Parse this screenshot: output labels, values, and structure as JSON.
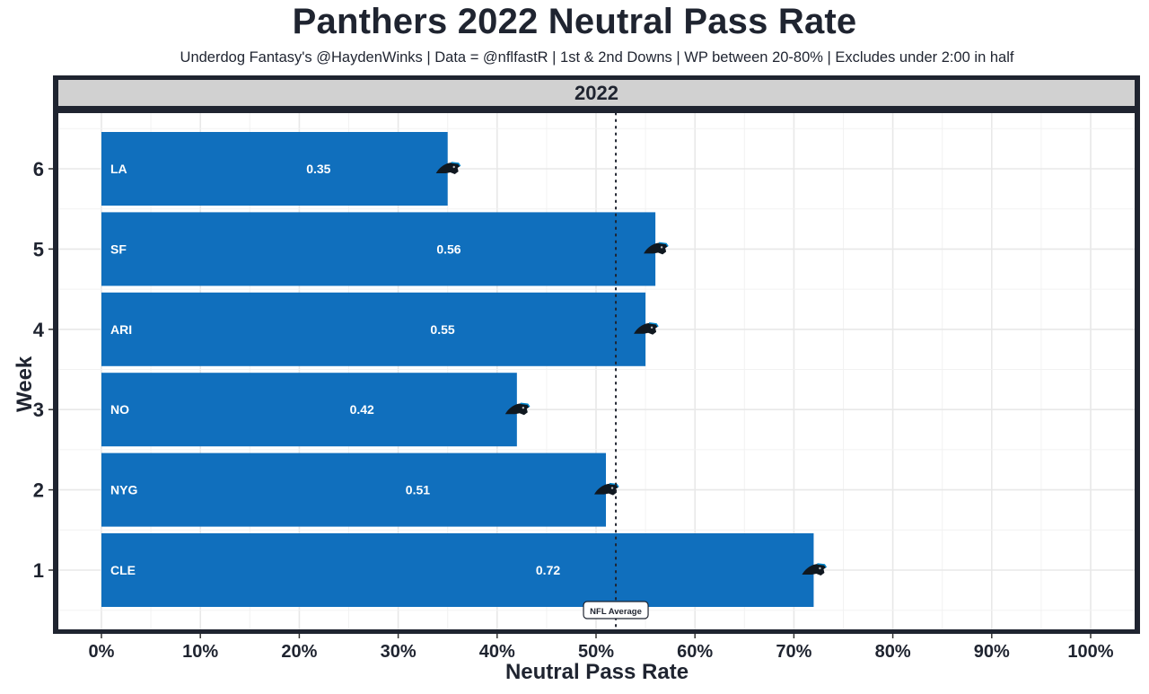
{
  "title": "Panthers 2022 Neutral Pass Rate",
  "subtitle": "Underdog Fantasy's @HaydenWinks | Data = @nflfastR | 1st & 2nd Downs | WP between 20-80% | Excludes under 2:00 in half",
  "facet_label": "2022",
  "colors": {
    "bar": "#106fbd",
    "text_dark": "#1f2430",
    "panel_border": "#1f2430",
    "strip_bg": "#d1d1d1",
    "grid": "#e8e8e8",
    "bar_label": "#ffffff"
  },
  "chart_data": {
    "type": "bar",
    "orientation": "horizontal",
    "title": "Panthers 2022 Neutral Pass Rate",
    "subtitle": "Underdog Fantasy's @HaydenWinks | Data = @nflfastR | 1st & 2nd Downs | WP between 20-80% | Excludes under 2:00 in half",
    "facet": "2022",
    "xlabel": "Neutral Pass Rate",
    "ylabel": "Week",
    "xlim": [
      0,
      1
    ],
    "x_ticks": [
      0,
      0.1,
      0.2,
      0.3,
      0.4,
      0.5,
      0.6,
      0.7,
      0.8,
      0.9,
      1.0
    ],
    "x_tick_labels": [
      "0%",
      "10%",
      "20%",
      "30%",
      "40%",
      "50%",
      "60%",
      "70%",
      "80%",
      "90%",
      "100%"
    ],
    "y_ticks": [
      1,
      2,
      3,
      4,
      5,
      6
    ],
    "y_tick_labels": [
      "1",
      "2",
      "3",
      "4",
      "5",
      "6"
    ],
    "grid": true,
    "bars": [
      {
        "week": 1,
        "opponent": "CLE",
        "value": 0.72,
        "label": "0.72"
      },
      {
        "week": 2,
        "opponent": "NYG",
        "value": 0.51,
        "label": "0.51"
      },
      {
        "week": 3,
        "opponent": "NO",
        "value": 0.42,
        "label": "0.42"
      },
      {
        "week": 4,
        "opponent": "ARI",
        "value": 0.55,
        "label": "0.55"
      },
      {
        "week": 5,
        "opponent": "SF",
        "value": 0.56,
        "label": "0.56"
      },
      {
        "week": 6,
        "opponent": "LA",
        "value": 0.35,
        "label": "0.35"
      }
    ],
    "reference_line": {
      "value": 0.52,
      "style": "dotted",
      "label": "NFL Average"
    },
    "bar_end_marker": "panthers-logo"
  }
}
